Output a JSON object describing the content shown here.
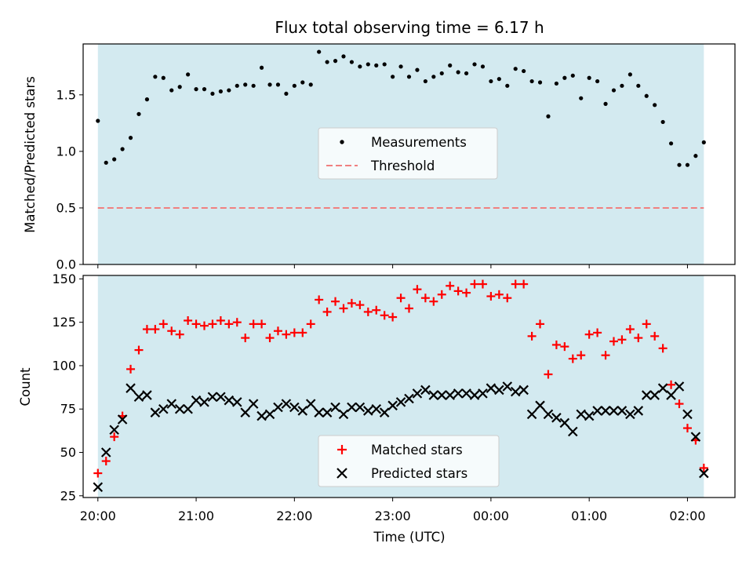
{
  "chart_data": [
    {
      "type": "scatter",
      "title": "Flux total observing time = 6.17 h",
      "ylabel": "Matched/Predicted stars",
      "xlim": [
        "19:51",
        "02:29"
      ],
      "ylim": [
        0,
        1.95
      ],
      "yticks": [
        "0.0",
        "0.5",
        "1.0",
        "1.5"
      ],
      "shaded_range": [
        "20:00",
        "02:10"
      ],
      "shaded_color": "#d3eaf0",
      "legend_position": "center",
      "series": [
        {
          "name": "Measurements",
          "color": "#000000",
          "marker": "dot",
          "points": [
            [
              "20:00",
              1.27
            ],
            [
              "20:05",
              0.9
            ],
            [
              "20:10",
              0.93
            ],
            [
              "20:15",
              1.02
            ],
            [
              "20:20",
              1.12
            ],
            [
              "20:25",
              1.33
            ],
            [
              "20:30",
              1.46
            ],
            [
              "20:35",
              1.66
            ],
            [
              "20:40",
              1.65
            ],
            [
              "20:45",
              1.54
            ],
            [
              "20:50",
              1.57
            ],
            [
              "20:55",
              1.68
            ],
            [
              "21:00",
              1.55
            ],
            [
              "21:05",
              1.55
            ],
            [
              "21:10",
              1.51
            ],
            [
              "21:15",
              1.53
            ],
            [
              "21:20",
              1.54
            ],
            [
              "21:25",
              1.58
            ],
            [
              "21:30",
              1.59
            ],
            [
              "21:35",
              1.58
            ],
            [
              "21:40",
              1.74
            ],
            [
              "21:45",
              1.59
            ],
            [
              "21:50",
              1.59
            ],
            [
              "21:55",
              1.51
            ],
            [
              "22:00",
              1.58
            ],
            [
              "22:05",
              1.61
            ],
            [
              "22:10",
              1.59
            ],
            [
              "22:15",
              1.88
            ],
            [
              "22:20",
              1.79
            ],
            [
              "22:25",
              1.8
            ],
            [
              "22:30",
              1.84
            ],
            [
              "22:35",
              1.79
            ],
            [
              "22:40",
              1.75
            ],
            [
              "22:45",
              1.77
            ],
            [
              "22:50",
              1.76
            ],
            [
              "22:55",
              1.77
            ],
            [
              "23:00",
              1.66
            ],
            [
              "23:05",
              1.75
            ],
            [
              "23:10",
              1.66
            ],
            [
              "23:15",
              1.72
            ],
            [
              "23:20",
              1.62
            ],
            [
              "23:25",
              1.66
            ],
            [
              "23:30",
              1.69
            ],
            [
              "23:35",
              1.76
            ],
            [
              "23:40",
              1.7
            ],
            [
              "23:45",
              1.69
            ],
            [
              "23:50",
              1.77
            ],
            [
              "23:55",
              1.75
            ],
            [
              "00:00",
              1.62
            ],
            [
              "00:05",
              1.64
            ],
            [
              "00:10",
              1.58
            ],
            [
              "00:15",
              1.73
            ],
            [
              "00:20",
              1.71
            ],
            [
              "00:25",
              1.62
            ],
            [
              "00:30",
              1.61
            ],
            [
              "00:35",
              1.31
            ],
            [
              "00:40",
              1.6
            ],
            [
              "00:45",
              1.65
            ],
            [
              "00:50",
              1.67
            ],
            [
              "00:55",
              1.47
            ],
            [
              "01:00",
              1.65
            ],
            [
              "01:05",
              1.62
            ],
            [
              "01:10",
              1.42
            ],
            [
              "01:15",
              1.54
            ],
            [
              "01:20",
              1.58
            ],
            [
              "01:25",
              1.68
            ],
            [
              "01:30",
              1.58
            ],
            [
              "01:35",
              1.49
            ],
            [
              "01:40",
              1.41
            ],
            [
              "01:45",
              1.26
            ],
            [
              "01:50",
              1.07
            ],
            [
              "01:55",
              0.88
            ],
            [
              "02:00",
              0.88
            ],
            [
              "02:05",
              0.96
            ],
            [
              "02:10",
              1.08
            ]
          ]
        },
        {
          "name": "Threshold",
          "color": "#f08080",
          "marker": "dashed-line",
          "y": 0.5,
          "x_range": [
            "20:00",
            "02:10"
          ]
        }
      ]
    },
    {
      "type": "scatter",
      "xlabel": "Time (UTC)",
      "ylabel": "Count",
      "xlim": [
        "19:51",
        "02:29"
      ],
      "ylim": [
        24,
        152
      ],
      "xticks": [
        "20:00",
        "21:00",
        "22:00",
        "23:00",
        "00:00",
        "01:00",
        "02:00"
      ],
      "yticks": [
        "25",
        "50",
        "75",
        "100",
        "125",
        "150"
      ],
      "shaded_range": [
        "20:00",
        "02:10"
      ],
      "shaded_color": "#d3eaf0",
      "legend_position": "lower center",
      "series": [
        {
          "name": "Matched stars",
          "color": "#ff0000",
          "marker": "plus",
          "points": [
            [
              "20:00",
              38
            ],
            [
              "20:05",
              45
            ],
            [
              "20:10",
              59
            ],
            [
              "20:15",
              71
            ],
            [
              "20:20",
              98
            ],
            [
              "20:25",
              109
            ],
            [
              "20:30",
              121
            ],
            [
              "20:35",
              121
            ],
            [
              "20:40",
              124
            ],
            [
              "20:45",
              120
            ],
            [
              "20:50",
              118
            ],
            [
              "20:55",
              126
            ],
            [
              "21:00",
              124
            ],
            [
              "21:05",
              123
            ],
            [
              "21:10",
              124
            ],
            [
              "21:15",
              126
            ],
            [
              "21:20",
              124
            ],
            [
              "21:25",
              125
            ],
            [
              "21:30",
              116
            ],
            [
              "21:35",
              124
            ],
            [
              "21:40",
              124
            ],
            [
              "21:45",
              116
            ],
            [
              "21:50",
              120
            ],
            [
              "21:55",
              118
            ],
            [
              "22:00",
              119
            ],
            [
              "22:05",
              119
            ],
            [
              "22:10",
              124
            ],
            [
              "22:15",
              138
            ],
            [
              "22:20",
              131
            ],
            [
              "22:25",
              137
            ],
            [
              "22:30",
              133
            ],
            [
              "22:35",
              136
            ],
            [
              "22:40",
              135
            ],
            [
              "22:45",
              131
            ],
            [
              "22:50",
              132
            ],
            [
              "22:55",
              129
            ],
            [
              "23:00",
              128
            ],
            [
              "23:05",
              139
            ],
            [
              "23:10",
              133
            ],
            [
              "23:15",
              144
            ],
            [
              "23:20",
              139
            ],
            [
              "23:25",
              137
            ],
            [
              "23:30",
              141
            ],
            [
              "23:35",
              146
            ],
            [
              "23:40",
              143
            ],
            [
              "23:45",
              142
            ],
            [
              "23:50",
              147
            ],
            [
              "23:55",
              147
            ],
            [
              "00:00",
              140
            ],
            [
              "00:05",
              141
            ],
            [
              "00:10",
              139
            ],
            [
              "00:15",
              147
            ],
            [
              "00:20",
              147
            ],
            [
              "00:25",
              117
            ],
            [
              "00:30",
              124
            ],
            [
              "00:35",
              95
            ],
            [
              "00:40",
              112
            ],
            [
              "00:45",
              111
            ],
            [
              "00:50",
              104
            ],
            [
              "00:55",
              106
            ],
            [
              "01:00",
              118
            ],
            [
              "01:05",
              119
            ],
            [
              "01:10",
              106
            ],
            [
              "01:15",
              114
            ],
            [
              "01:20",
              115
            ],
            [
              "01:25",
              121
            ],
            [
              "01:30",
              116
            ],
            [
              "01:35",
              124
            ],
            [
              "01:40",
              117
            ],
            [
              "01:45",
              110
            ],
            [
              "01:50",
              89
            ],
            [
              "01:55",
              78
            ],
            [
              "02:00",
              64
            ],
            [
              "02:05",
              57
            ],
            [
              "02:10",
              41
            ]
          ]
        },
        {
          "name": "Predicted stars",
          "color": "#000000",
          "marker": "x",
          "points": [
            [
              "20:00",
              30
            ],
            [
              "20:05",
              50
            ],
            [
              "20:10",
              63
            ],
            [
              "20:15",
              69
            ],
            [
              "20:20",
              87
            ],
            [
              "20:25",
              82
            ],
            [
              "20:30",
              83
            ],
            [
              "20:35",
              73
            ],
            [
              "20:40",
              75
            ],
            [
              "20:45",
              78
            ],
            [
              "20:50",
              75
            ],
            [
              "20:55",
              75
            ],
            [
              "21:00",
              80
            ],
            [
              "21:05",
              79
            ],
            [
              "21:10",
              82
            ],
            [
              "21:15",
              82
            ],
            [
              "21:20",
              80
            ],
            [
              "21:25",
              79
            ],
            [
              "21:30",
              73
            ],
            [
              "21:35",
              78
            ],
            [
              "21:40",
              71
            ],
            [
              "21:45",
              72
            ],
            [
              "21:50",
              76
            ],
            [
              "21:55",
              78
            ],
            [
              "22:00",
              76
            ],
            [
              "22:05",
              74
            ],
            [
              "22:10",
              78
            ],
            [
              "22:15",
              73
            ],
            [
              "22:20",
              73
            ],
            [
              "22:25",
              76
            ],
            [
              "22:30",
              72
            ],
            [
              "22:35",
              76
            ],
            [
              "22:40",
              76
            ],
            [
              "22:45",
              74
            ],
            [
              "22:50",
              75
            ],
            [
              "22:55",
              73
            ],
            [
              "23:00",
              77
            ],
            [
              "23:05",
              79
            ],
            [
              "23:10",
              81
            ],
            [
              "23:15",
              84
            ],
            [
              "23:20",
              86
            ],
            [
              "23:25",
              83
            ],
            [
              "23:30",
              83
            ],
            [
              "23:35",
              83
            ],
            [
              "23:40",
              84
            ],
            [
              "23:45",
              84
            ],
            [
              "23:50",
              83
            ],
            [
              "23:55",
              84
            ],
            [
              "00:00",
              87
            ],
            [
              "00:05",
              86
            ],
            [
              "00:10",
              88
            ],
            [
              "00:15",
              85
            ],
            [
              "00:20",
              86
            ],
            [
              "00:25",
              72
            ],
            [
              "00:30",
              77
            ],
            [
              "00:35",
              72
            ],
            [
              "00:40",
              70
            ],
            [
              "00:45",
              67
            ],
            [
              "00:50",
              62
            ],
            [
              "00:55",
              72
            ],
            [
              "01:00",
              71
            ],
            [
              "01:05",
              74
            ],
            [
              "01:10",
              74
            ],
            [
              "01:15",
              74
            ],
            [
              "01:20",
              74
            ],
            [
              "01:25",
              72
            ],
            [
              "01:30",
              74
            ],
            [
              "01:35",
              83
            ],
            [
              "01:40",
              83
            ],
            [
              "01:45",
              87
            ],
            [
              "01:50",
              83
            ],
            [
              "01:55",
              88
            ],
            [
              "02:00",
              72
            ],
            [
              "02:05",
              59
            ],
            [
              "02:10",
              38
            ]
          ]
        }
      ]
    }
  ]
}
